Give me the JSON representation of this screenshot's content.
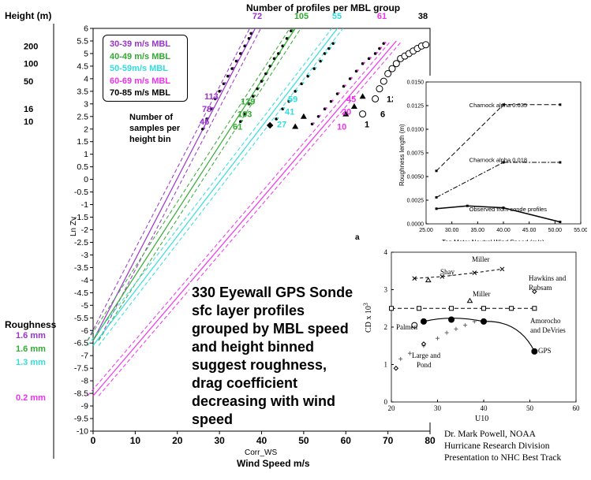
{
  "chart_data": [
    {
      "type": "line",
      "xlabel": "Corr_WS",
      "xlabel2": "Wind Speed m/s",
      "ylabel": "Ln Zv",
      "xlim": [
        0,
        80
      ],
      "ylim": [
        -10,
        6
      ],
      "xticks": [
        "0",
        "10",
        "20",
        "30",
        "40",
        "50",
        "60",
        "70",
        "80"
      ],
      "yticks": [
        "-10",
        "-9.5",
        "-9",
        "-8.5",
        "-8",
        "-7.5",
        "-7",
        "-6.5",
        "-6",
        "-5.5",
        "-5",
        "-4.5",
        "-4",
        "-3.5",
        "-3",
        "-2.5",
        "-2",
        "-1.5",
        "-1",
        "-0.5",
        "0",
        "0.5",
        "1",
        "1.5",
        "2",
        "2.5",
        "3",
        "3.5",
        "4",
        "4.5",
        "5",
        "5.5",
        "6"
      ],
      "height_label": "Height (m)",
      "height_ticks": [
        "200",
        "100",
        "50",
        "16",
        "10"
      ],
      "height_tick_y": [
        5.3,
        4.6,
        3.9,
        2.8,
        2.3
      ],
      "profiles_label": "Number of profiles per MBL group",
      "roughness_label": "Roughness",
      "series": [
        {
          "name": "30-39 m/s MBL",
          "color": "#9933cc",
          "profiles": "72",
          "roughness": "1.6 mm",
          "fit_x": [
            0,
            38.5
          ],
          "fit_y": [
            -6.4,
            6
          ],
          "obs_x": [
            26,
            27,
            28,
            29,
            30,
            31,
            32,
            33,
            34,
            35,
            36,
            37,
            37.5
          ],
          "obs_y": [
            2.0,
            2.4,
            2.8,
            3.2,
            3.5,
            3.8,
            4.1,
            4.4,
            4.7,
            5.0,
            5.3,
            5.6,
            5.8
          ],
          "samples": [
            "113",
            "78",
            "46"
          ],
          "samples_y": [
            3.3,
            2.8,
            2.3
          ]
        },
        {
          "name": "40-49 m/s MBL",
          "color": "#33aa33",
          "profiles": "105",
          "roughness": "1.6 mm",
          "fit_x": [
            0,
            48
          ],
          "fit_y": [
            -6.4,
            6
          ],
          "obs_x": [
            35,
            36,
            37,
            38,
            39,
            40,
            41,
            42,
            43,
            44,
            45,
            46,
            47
          ],
          "obs_y": [
            2.3,
            2.6,
            3.0,
            3.3,
            3.6,
            3.9,
            4.2,
            4.5,
            4.8,
            5.0,
            5.3,
            5.6,
            5.9
          ],
          "samples": [
            "129",
            "103",
            "61"
          ],
          "samples_y": [
            3.1,
            2.6,
            2.1
          ]
        },
        {
          "name": "50-59m/s MBL",
          "color": "#33dddd",
          "profiles": "55",
          "roughness": "1.3 mm",
          "fit_x": [
            0,
            58
          ],
          "fit_y": [
            -6.6,
            6
          ],
          "obs_x": [
            42,
            43.5,
            45,
            46.5,
            48,
            49.5,
            51,
            52.5,
            54,
            55,
            56,
            57
          ],
          "obs_y": [
            2.1,
            2.4,
            2.8,
            3.1,
            3.5,
            3.8,
            4.1,
            4.4,
            4.7,
            5.0,
            5.2,
            5.4
          ],
          "samples": [
            "59",
            "41",
            "27"
          ],
          "samples_y": [
            3.2,
            2.7,
            2.2
          ]
        },
        {
          "name": "60-69 m/s MBL",
          "color": "#ee33ee",
          "profiles": "61",
          "roughness": "0.2 mm",
          "fit_x": [
            0,
            72
          ],
          "fit_y": [
            -8.6,
            5.5
          ],
          "obs_x": [
            52,
            53.5,
            55,
            56.5,
            58,
            59.5,
            61,
            62.5,
            64,
            65.5,
            67,
            68,
            69
          ],
          "obs_y": [
            2.2,
            2.5,
            2.8,
            3.1,
            3.4,
            3.7,
            4.0,
            4.3,
            4.6,
            4.8,
            5.0,
            5.2,
            5.4
          ],
          "samples": [
            "45",
            "20",
            "10"
          ],
          "samples_y": [
            3.2,
            2.7,
            2.1
          ]
        },
        {
          "name": "70-85 m/s MBL",
          "color": "#000000",
          "profiles": "38",
          "roughness": "",
          "obs_x": [
            64,
            67,
            68,
            69,
            70,
            71,
            72,
            73,
            74,
            75,
            76,
            77,
            78,
            79
          ],
          "obs_y": [
            2.6,
            3.2,
            3.6,
            3.9,
            4.2,
            4.4,
            4.6,
            4.8,
            4.9,
            5.0,
            5.1,
            5.2,
            5.3,
            5.35
          ],
          "samples": [
            "12",
            "6",
            "1"
          ],
          "samples_y": [
            3.2,
            2.6,
            2.2
          ]
        }
      ],
      "samples_note": [
        "Number of",
        "samples per",
        "height bin"
      ],
      "annotation": [
        "330 Eyewall GPS Sonde",
        "sfc layer profiles",
        "grouped by MBL speed",
        "and height binned",
        "suggest roughness,",
        "drag coefficient",
        "decreasing with wind",
        "speed"
      ]
    },
    {
      "type": "line",
      "xlabel": "Ten Meter Neutral Wind Speed (m/s)",
      "ylabel": "Roughness length (m)",
      "xlim": [
        25,
        55
      ],
      "ylim": [
        0,
        0.015
      ],
      "xticks": [
        "25.00",
        "30.00",
        "35.00",
        "40.00",
        "45.00",
        "50.00",
        "55.00"
      ],
      "yticks": [
        "0.0000",
        "0.0025",
        "0.0050",
        "0.0075",
        "0.0100",
        "0.0125",
        "0.0150"
      ],
      "series": [
        {
          "name": "Charnock alpha 0.035",
          "x": [
            27,
            40,
            51
          ],
          "y": [
            0.0056,
            0.0126,
            0.0126
          ],
          "dash": "6,3"
        },
        {
          "name": "Charnock alpha 0.018",
          "x": [
            27,
            40,
            51
          ],
          "y": [
            0.0028,
            0.0065,
            0.0065
          ],
          "dash": "6,2,2,2"
        },
        {
          "name": "Observed from sonde profiles",
          "x": [
            27,
            33,
            40,
            51
          ],
          "y": [
            0.0016,
            0.0019,
            0.0017,
            0.0002
          ],
          "dash": ""
        }
      ]
    },
    {
      "type": "scatter",
      "panel_label": "a",
      "xlabel": "U10",
      "ylabel": "CD x 10",
      "ylabel_sup": "3",
      "xlim": [
        20,
        60
      ],
      "ylim": [
        0,
        4
      ],
      "xticks": [
        "20",
        "30",
        "40",
        "50",
        "60"
      ],
      "yticks": [
        "0",
        "1",
        "2",
        "3",
        "4"
      ],
      "series": [
        {
          "name": "GPS",
          "x": [
            27,
            33,
            40,
            51
          ],
          "y": [
            2.15,
            2.2,
            2.15,
            1.35
          ],
          "marker": "dot"
        },
        {
          "name": "Shay",
          "x": [
            25,
            31,
            38,
            44
          ],
          "y": [
            3.3,
            3.35,
            3.45,
            3.55
          ],
          "marker": "x"
        },
        {
          "name": "Amorocho and DeVries",
          "x": [
            20,
            26,
            33,
            40,
            46,
            51
          ],
          "y": [
            2.5,
            2.5,
            2.5,
            2.5,
            2.5,
            2.5
          ],
          "marker": "square"
        },
        {
          "name": "Miller",
          "x": [
            28,
            37
          ],
          "y": [
            3.25,
            2.7
          ],
          "marker": "triangle"
        },
        {
          "name": "Palmen",
          "x": [
            25
          ],
          "y": [
            2.05
          ],
          "marker": "circle"
        },
        {
          "name": "Large and Pond",
          "x": [
            22,
            24,
            27,
            30,
            32,
            34,
            36,
            38
          ],
          "y": [
            1.15,
            1.3,
            1.5,
            1.7,
            1.85,
            1.95,
            2.05,
            2.15
          ],
          "marker": "plus"
        },
        {
          "name": "Hawkins and Rubsam",
          "x": [
            21,
            27,
            51
          ],
          "y": [
            0.9,
            1.55,
            2.95
          ],
          "marker": "diamond"
        }
      ],
      "labels": {
        "miller": "Miller",
        "shay": "Shay",
        "hawkins": "Hawkins and\nRubsam",
        "amorocho": "Amorocho\nand DeVries",
        "palmen": "Palmen",
        "large": "Large  and\nPond",
        "gps": "GPS"
      }
    }
  ],
  "credit": [
    "Dr. Mark Powell, NOAA",
    "Hurricane Research Division",
    "Presentation to NHC Best Track"
  ]
}
